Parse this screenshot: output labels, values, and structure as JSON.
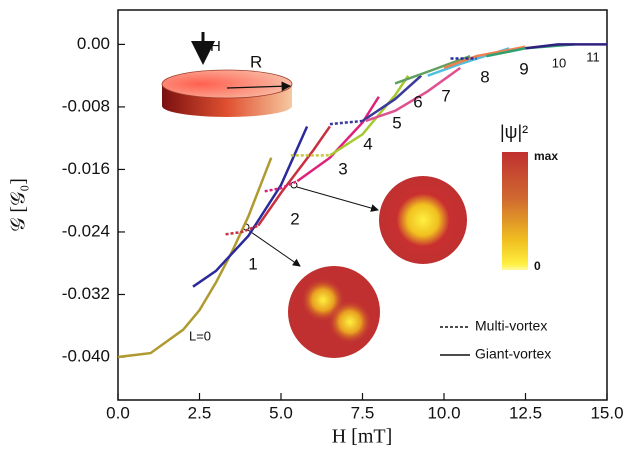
{
  "chart_data": {
    "type": "line",
    "xlabel": "H [mT]",
    "ylabel": "𝒢 [𝒢₀]",
    "xlim": [
      0,
      15
    ],
    "ylim": [
      -0.0455,
      0.0044
    ],
    "xticks": [
      {
        "value": 0,
        "label": "0.0"
      },
      2.5,
      {
        "value": 5,
        "label": "5.0"
      },
      7.5,
      {
        "value": 10,
        "label": "10.0"
      },
      12.5,
      {
        "value": 15,
        "label": "15.0"
      }
    ],
    "yticks": [
      {
        "value": 0,
        "label": "0.00"
      },
      -0.008,
      -0.016,
      -0.024,
      -0.032,
      {
        "value": -0.04,
        "label": "-0.040"
      }
    ],
    "series": [
      {
        "name": "L=0",
        "color": "#b09a30",
        "style": "solid",
        "x": [
          0,
          1,
          2,
          2.5,
          3,
          3.5,
          4,
          4.7
        ],
        "values": [
          -0.04,
          -0.0395,
          -0.0365,
          -0.034,
          -0.0305,
          -0.0265,
          -0.022,
          -0.0145
        ]
      },
      {
        "name": "1",
        "color": "#2a2a9a",
        "style": "solid",
        "x": [
          2.3,
          3,
          4,
          5,
          5.8
        ],
        "values": [
          -0.031,
          -0.029,
          -0.0245,
          -0.018,
          -0.0105
        ]
      },
      {
        "color": "#c83040",
        "style": "dashed",
        "x": [
          3.3,
          3.8,
          4.3
        ],
        "values": [
          -0.0243,
          -0.024,
          -0.0232
        ]
      },
      {
        "name": "2",
        "color": "#c83040",
        "style": "solid",
        "x": [
          4.3,
          5,
          6,
          6.5
        ],
        "values": [
          -0.0232,
          -0.019,
          -0.0135,
          -0.0105
        ]
      },
      {
        "color": "#e0207a",
        "style": "dashed",
        "x": [
          4.5,
          5,
          5.5
        ],
        "values": [
          -0.0188,
          -0.0184,
          -0.0175
        ]
      },
      {
        "name": "3",
        "color": "#e0207a",
        "style": "solid",
        "x": [
          5.5,
          6.5,
          7.5,
          8
        ],
        "values": [
          -0.0175,
          -0.0145,
          -0.01,
          -0.0067
        ]
      },
      {
        "color": "#c8c840",
        "style": "dashed",
        "x": [
          5.3,
          6.5
        ],
        "values": [
          -0.0142,
          -0.0142
        ]
      },
      {
        "name": "4",
        "color": "#a8c830",
        "style": "solid",
        "x": [
          6.5,
          7.5,
          8.5,
          8.9
        ],
        "values": [
          -0.0142,
          -0.0115,
          -0.0065,
          -0.004
        ]
      },
      {
        "color": "#3a3a9a",
        "style": "dashed",
        "x": [
          6.5,
          7.5
        ],
        "values": [
          -0.0102,
          -0.0098
        ]
      },
      {
        "name": "5",
        "color": "#3a3a9a",
        "style": "solid",
        "x": [
          7.5,
          8.5,
          9.3
        ],
        "values": [
          -0.0098,
          -0.007,
          -0.004
        ]
      },
      {
        "name": "6",
        "color": "#e05090",
        "style": "solid",
        "x": [
          7.6,
          8.5,
          9.5,
          10.5
        ],
        "values": [
          -0.0098,
          -0.0085,
          -0.006,
          -0.003
        ]
      },
      {
        "name": "7",
        "color": "#60a060",
        "style": "solid",
        "x": [
          8.5,
          9.5,
          10.8
        ],
        "values": [
          -0.005,
          -0.0035,
          -0.0015
        ]
      },
      {
        "name": "8",
        "color": "#50c0e0",
        "style": "solid",
        "x": [
          9.5,
          10.5,
          12
        ],
        "values": [
          -0.004,
          -0.0025,
          -0.0005
        ]
      },
      {
        "name": "9",
        "color": "#f08050",
        "style": "solid",
        "x": [
          10,
          11,
          12.5
        ],
        "values": [
          -0.003,
          -0.0015,
          -0.0003
        ]
      },
      {
        "color": "#2a2a9a",
        "style": "dashed",
        "x": [
          10.2,
          11
        ],
        "values": [
          -0.0018,
          -0.0018
        ]
      },
      {
        "name": "10",
        "color": "#30a070",
        "style": "solid",
        "x": [
          11.3,
          12.5,
          14
        ],
        "values": [
          -0.0015,
          -0.0005,
          0
        ]
      },
      {
        "name": "11",
        "color": "#302080",
        "style": "solid",
        "x": [
          12.5,
          13.5,
          15
        ],
        "values": [
          -0.0005,
          0,
          0
        ]
      }
    ],
    "legend": [
      {
        "label": "Multi-vortex",
        "style": "dashed"
      },
      {
        "label": "Giant-vortex",
        "style": "solid"
      }
    ],
    "inset": {
      "field": "H",
      "radius": "R",
      "colorbar_title": "|ψ|²",
      "colorbar_max": "max",
      "colorbar_min": "0"
    }
  }
}
